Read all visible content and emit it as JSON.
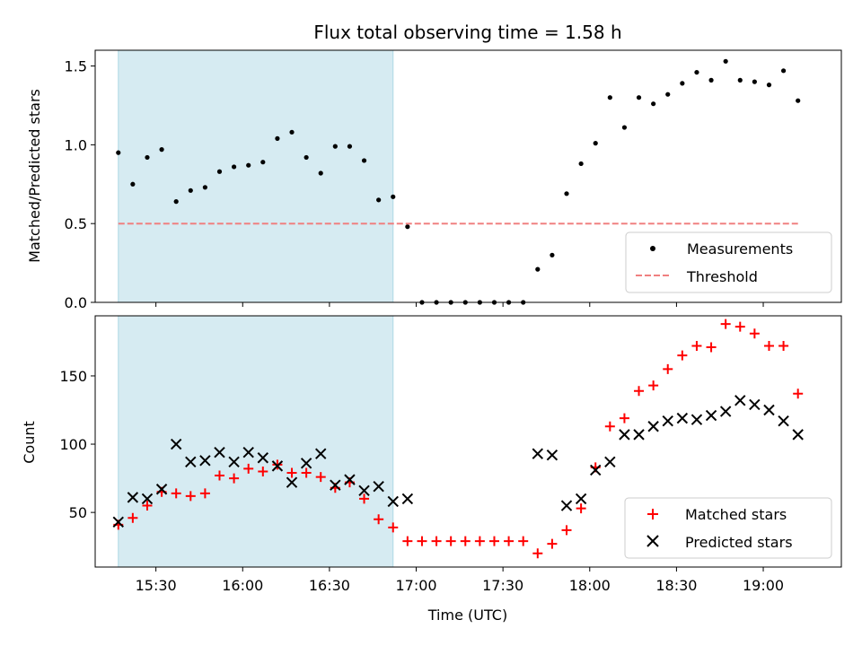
{
  "chart_data": [
    {
      "type": "scatter",
      "title": "Flux total observing time = 1.58 h",
      "ylabel": "Matched/Predicted stars",
      "xlim": [
        "15:09",
        "19:27"
      ],
      "ylim": [
        0,
        1.6
      ],
      "yticks": [
        0.0,
        0.5,
        1.0,
        1.5
      ],
      "ytick_labels": [
        "0.0",
        "0.5",
        "1.0",
        "1.5"
      ],
      "grid": false,
      "legend_position": "lower-right",
      "shaded_region": {
        "start": "15:17",
        "end": "16:52",
        "color": "#add8e6"
      },
      "series": [
        {
          "name": "Measurements",
          "kind": "points",
          "color": "#000000",
          "x": [
            "15:17",
            "15:22",
            "15:27",
            "15:32",
            "15:37",
            "15:42",
            "15:47",
            "15:52",
            "15:57",
            "16:02",
            "16:07",
            "16:12",
            "16:17",
            "16:22",
            "16:27",
            "16:32",
            "16:37",
            "16:42",
            "16:47",
            "16:52",
            "16:57",
            "17:02",
            "17:07",
            "17:12",
            "17:17",
            "17:22",
            "17:27",
            "17:32",
            "17:37",
            "17:42",
            "17:47",
            "17:52",
            "17:57",
            "18:02",
            "18:07",
            "18:12",
            "18:17",
            "18:22",
            "18:27",
            "18:32",
            "18:37",
            "18:42",
            "18:47",
            "18:52",
            "18:57",
            "19:02",
            "19:07",
            "19:12"
          ],
          "values": [
            0.95,
            0.75,
            0.92,
            0.97,
            0.64,
            0.71,
            0.73,
            0.83,
            0.86,
            0.87,
            0.89,
            1.04,
            1.08,
            0.92,
            0.82,
            0.99,
            0.99,
            0.9,
            0.65,
            0.67,
            0.48,
            0.0,
            0.0,
            0.0,
            0.0,
            0.0,
            0.0,
            0.0,
            0.0,
            0.21,
            0.3,
            0.69,
            0.88,
            1.01,
            1.3,
            1.11,
            1.3,
            1.26,
            1.32,
            1.39,
            1.46,
            1.41,
            1.53,
            1.41,
            1.4,
            1.38,
            1.47,
            1.28
          ]
        },
        {
          "name": "Threshold",
          "kind": "dashed-line",
          "color": "#f08080",
          "x": [
            "15:17",
            "19:12"
          ],
          "values": [
            0.5,
            0.5
          ]
        }
      ]
    },
    {
      "type": "scatter",
      "ylabel": "Count",
      "xlabel": "Time (UTC)",
      "xlim": [
        "15:09",
        "19:27"
      ],
      "ylim": [
        10,
        194
      ],
      "xtick_labels": [
        "15:30",
        "16:00",
        "16:30",
        "17:00",
        "17:30",
        "18:00",
        "18:30",
        "19:00"
      ],
      "yticks": [
        50,
        100,
        150
      ],
      "ytick_labels": [
        "50",
        "100",
        "150"
      ],
      "grid": false,
      "legend_position": "lower-right",
      "shaded_region": {
        "start": "15:17",
        "end": "16:52",
        "color": "#add8e6"
      },
      "series": [
        {
          "name": "Matched stars",
          "marker": "+",
          "color": "#ff0000",
          "x": [
            "15:17",
            "15:22",
            "15:27",
            "15:32",
            "15:37",
            "15:42",
            "15:47",
            "15:52",
            "15:57",
            "16:02",
            "16:07",
            "16:12",
            "16:17",
            "16:22",
            "16:27",
            "16:32",
            "16:37",
            "16:42",
            "16:47",
            "16:52",
            "16:57",
            "17:02",
            "17:07",
            "17:12",
            "17:17",
            "17:22",
            "17:27",
            "17:32",
            "17:37",
            "17:42",
            "17:47",
            "17:52",
            "17:57",
            "18:02",
            "18:07",
            "18:12",
            "18:17",
            "18:22",
            "18:27",
            "18:32",
            "18:37",
            "18:42",
            "18:47",
            "18:52",
            "18:57",
            "19:02",
            "19:07",
            "19:12"
          ],
          "values": [
            41,
            46,
            55,
            65,
            64,
            62,
            64,
            77,
            75,
            82,
            80,
            85,
            79,
            79,
            76,
            68,
            72,
            60,
            45,
            39,
            29,
            29,
            29,
            29,
            29,
            29,
            29,
            29,
            29,
            20,
            27,
            37,
            53,
            83,
            113,
            119,
            139,
            143,
            155,
            165,
            172,
            171,
            188,
            186,
            181,
            172,
            172,
            137
          ]
        },
        {
          "name": "Predicted stars",
          "marker": "x",
          "color": "#000000",
          "x": [
            "15:17",
            "15:22",
            "15:27",
            "15:32",
            "15:37",
            "15:42",
            "15:47",
            "15:52",
            "15:57",
            "16:02",
            "16:07",
            "16:12",
            "16:17",
            "16:22",
            "16:27",
            "16:32",
            "16:37",
            "16:42",
            "16:47",
            "16:52",
            "16:57",
            "17:42",
            "17:47",
            "17:52",
            "17:57",
            "18:02",
            "18:07",
            "18:12",
            "18:17",
            "18:22",
            "18:27",
            "18:32",
            "18:37",
            "18:42",
            "18:47",
            "18:52",
            "18:57",
            "19:02",
            "19:07",
            "19:12"
          ],
          "values": [
            43,
            61,
            60,
            67,
            100,
            87,
            88,
            94,
            87,
            94,
            90,
            84,
            72,
            86,
            93,
            70,
            74,
            66,
            69,
            58,
            60,
            93,
            92,
            55,
            60,
            81,
            87,
            107,
            107,
            113,
            117,
            119,
            118,
            121,
            124,
            132,
            129,
            125,
            117,
            107
          ]
        }
      ]
    }
  ]
}
